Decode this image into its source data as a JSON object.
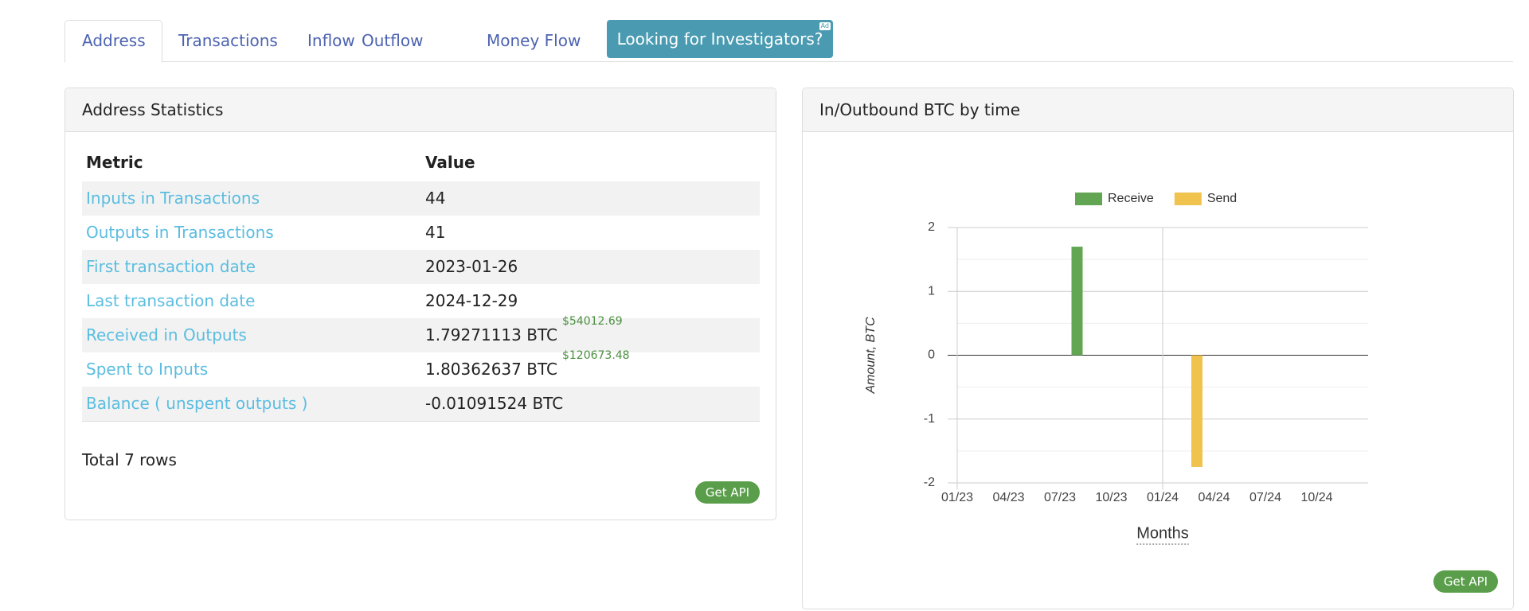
{
  "tabs": [
    "Address",
    "Transactions",
    "Inflow",
    "Outflow",
    "Money Flow"
  ],
  "ad_button": {
    "label": "Looking for Investigators?",
    "badge": "Ad"
  },
  "stats": {
    "title": "Address Statistics",
    "columns": [
      "Metric",
      "Value"
    ],
    "rows": [
      {
        "metric": "Inputs in Transactions",
        "value": "44"
      },
      {
        "metric": "Outputs in Transactions",
        "value": "41"
      },
      {
        "metric": "First transaction date",
        "value": "2023-01-26"
      },
      {
        "metric": "Last transaction date",
        "value": "2024-12-29"
      },
      {
        "metric": "Received in Outputs",
        "value": "1.79271113 BTC",
        "usd": "$54012.69"
      },
      {
        "metric": "Spent to Inputs",
        "value": "1.80362637 BTC",
        "usd": "$120673.48"
      },
      {
        "metric": "Balance ( unspent outputs )",
        "value": "-0.01091524 BTC"
      }
    ],
    "total": "Total 7 rows",
    "api": "Get API"
  },
  "chart_panel": {
    "title": "In/Outbound BTC by time",
    "api": "Get API"
  },
  "chart_data": {
    "type": "bar",
    "x_label": "Months",
    "y_label": "Amount, BTC",
    "categories": [
      "01/23",
      null,
      null,
      "04/23",
      null,
      null,
      "07/23",
      null,
      null,
      "10/23",
      null,
      null,
      "01/24",
      null,
      null,
      "04/24",
      null,
      null,
      "07/24",
      null,
      null,
      "10/24",
      null,
      null
    ],
    "series": [
      {
        "name": "Receive",
        "color": "#62a552",
        "values": [
          0,
          0,
          0,
          0,
          0,
          0,
          0,
          1.7,
          0,
          0,
          0,
          0,
          0,
          0,
          0,
          0,
          0,
          0,
          0,
          0,
          0,
          0,
          0,
          0
        ]
      },
      {
        "name": "Send",
        "color": "#f0c24e",
        "values": [
          0,
          0,
          0,
          0,
          0,
          0,
          0,
          0,
          0,
          0,
          0,
          0,
          0,
          0,
          -1.75,
          0,
          0,
          0,
          0,
          0,
          0,
          0,
          0,
          0
        ]
      }
    ],
    "ylim": [
      -2,
      2
    ],
    "yticks": [
      -2,
      -1,
      0,
      1,
      2
    ],
    "grid": true,
    "legend": "top"
  }
}
